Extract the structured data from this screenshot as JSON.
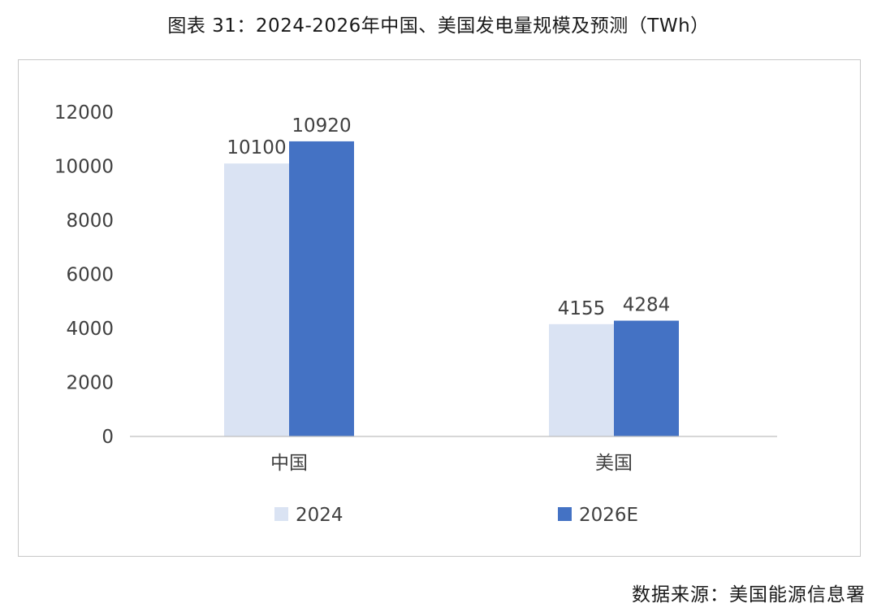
{
  "title": "图表 31：2024-2026年中国、美国发电量规模及预测（TWh）",
  "source": "数据来源：美国能源信息署",
  "colors": {
    "s2024": "#dae3f3",
    "s2026": "#4472c4",
    "axis": "#bfbfbf",
    "text": "#404040"
  },
  "chart_data": {
    "type": "bar",
    "title": "图表 31：2024-2026年中国、美国发电量规模及预测（TWh）",
    "xlabel": "",
    "ylabel": "",
    "categories": [
      "中国",
      "美国"
    ],
    "series": [
      {
        "name": "2024",
        "values": [
          10100,
          4155
        ]
      },
      {
        "name": "2026E",
        "values": [
          10920,
          4284
        ]
      }
    ],
    "ylim": [
      0,
      12000
    ],
    "yticks": [
      0,
      2000,
      4000,
      6000,
      8000,
      10000,
      12000
    ],
    "grid": false,
    "legend": "bottom",
    "data_labels": true
  }
}
